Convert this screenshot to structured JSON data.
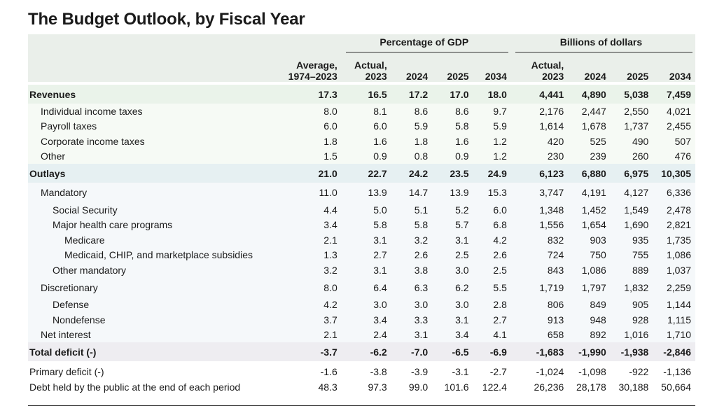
{
  "title": "The Budget Outlook, by Fiscal Year",
  "group_headers": {
    "pct_gdp": "Percentage of GDP",
    "billions": "Billions of dollars"
  },
  "column_headers": [
    {
      "line1": "Average,",
      "line2": "1974–2023"
    },
    {
      "line1": "Actual,",
      "line2": "2023"
    },
    {
      "line1": "",
      "line2": "2024"
    },
    {
      "line1": "",
      "line2": "2025"
    },
    {
      "line1": "",
      "line2": "2034"
    },
    {
      "line1": "Actual,",
      "line2": "2023"
    },
    {
      "line1": "",
      "line2": "2024"
    },
    {
      "line1": "",
      "line2": "2025"
    },
    {
      "line1": "",
      "line2": "2034"
    }
  ],
  "rows": [
    {
      "label": "Revenues",
      "values": [
        "17.3",
        "16.5",
        "17.2",
        "17.0",
        "18.0",
        "4,441",
        "4,890",
        "5,038",
        "7,459"
      ]
    },
    {
      "label": "Individual income taxes",
      "values": [
        "8.0",
        "8.1",
        "8.6",
        "8.6",
        "9.7",
        "2,176",
        "2,447",
        "2,550",
        "4,021"
      ]
    },
    {
      "label": "Payroll taxes",
      "values": [
        "6.0",
        "6.0",
        "5.9",
        "5.8",
        "5.9",
        "1,614",
        "1,678",
        "1,737",
        "2,455"
      ]
    },
    {
      "label": "Corporate income taxes",
      "values": [
        "1.8",
        "1.6",
        "1.8",
        "1.6",
        "1.2",
        "420",
        "525",
        "490",
        "507"
      ]
    },
    {
      "label": "Other",
      "values": [
        "1.5",
        "0.9",
        "0.8",
        "0.9",
        "1.2",
        "230",
        "239",
        "260",
        "476"
      ]
    },
    {
      "label": "Outlays",
      "values": [
        "21.0",
        "22.7",
        "24.2",
        "23.5",
        "24.9",
        "6,123",
        "6,880",
        "6,975",
        "10,305"
      ]
    },
    {
      "label": "Mandatory",
      "values": [
        "11.0",
        "13.9",
        "14.7",
        "13.9",
        "15.3",
        "3,747",
        "4,191",
        "4,127",
        "6,336"
      ]
    },
    {
      "label": "Social Security",
      "values": [
        "4.4",
        "5.0",
        "5.1",
        "5.2",
        "6.0",
        "1,348",
        "1,452",
        "1,549",
        "2,478"
      ]
    },
    {
      "label": "Major health care programs",
      "values": [
        "3.4",
        "5.8",
        "5.8",
        "5.7",
        "6.8",
        "1,556",
        "1,654",
        "1,690",
        "2,821"
      ]
    },
    {
      "label": "Medicare",
      "values": [
        "2.1",
        "3.1",
        "3.2",
        "3.1",
        "4.2",
        "832",
        "903",
        "935",
        "1,735"
      ]
    },
    {
      "label": "Medicaid, CHIP, and marketplace subsidies",
      "values": [
        "1.3",
        "2.7",
        "2.6",
        "2.5",
        "2.6",
        "724",
        "750",
        "755",
        "1,086"
      ]
    },
    {
      "label": "Other mandatory",
      "values": [
        "3.2",
        "3.1",
        "3.8",
        "3.0",
        "2.5",
        "843",
        "1,086",
        "889",
        "1,037"
      ]
    },
    {
      "label": "Discretionary",
      "values": [
        "8.0",
        "6.4",
        "6.3",
        "6.2",
        "5.5",
        "1,719",
        "1,797",
        "1,832",
        "2,259"
      ]
    },
    {
      "label": "Defense",
      "values": [
        "4.2",
        "3.0",
        "3.0",
        "3.0",
        "2.8",
        "806",
        "849",
        "905",
        "1,144"
      ]
    },
    {
      "label": "Nondefense",
      "values": [
        "3.7",
        "3.4",
        "3.3",
        "3.1",
        "2.7",
        "913",
        "948",
        "928",
        "1,115"
      ]
    },
    {
      "label": "Net interest",
      "values": [
        "2.1",
        "2.4",
        "3.1",
        "3.4",
        "4.1",
        "658",
        "892",
        "1,016",
        "1,710"
      ]
    },
    {
      "label": "Total deficit (-)",
      "values": [
        "-3.7",
        "-6.2",
        "-7.0",
        "-6.5",
        "-6.9",
        "-1,683",
        "-1,990",
        "-1,938",
        "-2,846"
      ]
    },
    {
      "label": "Primary deficit (-)",
      "values": [
        "-1.6",
        "-3.8",
        "-3.9",
        "-3.1",
        "-2.7",
        "-1,024",
        "-1,098",
        "-922",
        "-1,136"
      ]
    },
    {
      "label": "Debt held by the public at the end of each period",
      "values": [
        "48.3",
        "97.3",
        "99.0",
        "101.6",
        "122.4",
        "26,236",
        "28,178",
        "30,188",
        "50,664"
      ]
    }
  ]
}
